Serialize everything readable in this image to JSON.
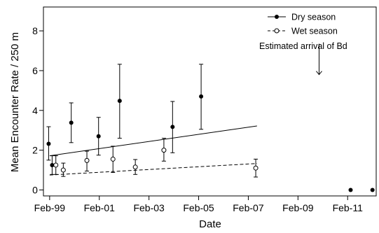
{
  "chart_data": {
    "type": "scatter",
    "title": "",
    "xlabel": "Date",
    "ylabel": "Mean Encounter Rate / 250 m",
    "x_ticks": [
      "Feb-99",
      "Feb-01",
      "Feb-03",
      "Feb-05",
      "Feb-07",
      "Feb-09",
      "Feb-11"
    ],
    "x_tick_years": [
      1999,
      2001,
      2003,
      2005,
      2007,
      2009,
      2011
    ],
    "xlim": [
      1998.75,
      2012.15
    ],
    "ylim": [
      -0.3,
      9.2
    ],
    "y_ticks": [
      0,
      2,
      4,
      6,
      8
    ],
    "grid": false,
    "legend_position": "top-right",
    "series": [
      {
        "name": "Dry season",
        "marker": "filled-circle",
        "line": "solid",
        "color": "#000000",
        "points": [
          {
            "x": 1998.96,
            "y": 2.32,
            "ylo": 1.5,
            "yhi": 3.18
          },
          {
            "x": 1999.1,
            "y": 1.25,
            "ylo": 0.78,
            "yhi": 1.72
          },
          {
            "x": 1999.87,
            "y": 3.38,
            "ylo": 2.38,
            "yhi": 4.38
          },
          {
            "x": 2000.97,
            "y": 2.7,
            "ylo": 1.75,
            "yhi": 3.65
          },
          {
            "x": 2001.82,
            "y": 4.48,
            "ylo": 2.6,
            "yhi": 6.32
          },
          {
            "x": 2003.95,
            "y": 3.17,
            "ylo": 1.87,
            "yhi": 4.45
          },
          {
            "x": 2005.1,
            "y": 4.7,
            "ylo": 3.05,
            "yhi": 6.32
          },
          {
            "x": 2011.12,
            "y": 0.0
          },
          {
            "x": 2012.0,
            "y": 0.0
          }
        ],
        "trend": [
          {
            "x": 1999.0,
            "y": 1.72
          },
          {
            "x": 2007.35,
            "y": 3.22
          }
        ]
      },
      {
        "name": "Wet season",
        "marker": "open-circle",
        "line": "dashed",
        "color": "#000000",
        "points": [
          {
            "x": 1999.25,
            "y": 1.25,
            "ylo": 0.78,
            "yhi": 1.72
          },
          {
            "x": 1999.55,
            "y": 1.0,
            "ylo": 0.68,
            "yhi": 1.35
          },
          {
            "x": 2000.5,
            "y": 1.48,
            "ylo": 0.95,
            "yhi": 1.95
          },
          {
            "x": 2001.55,
            "y": 1.55,
            "ylo": 0.88,
            "yhi": 2.2
          },
          {
            "x": 2002.45,
            "y": 1.15,
            "ylo": 0.78,
            "yhi": 1.53
          },
          {
            "x": 2003.6,
            "y": 2.0,
            "ylo": 1.45,
            "yhi": 2.6
          },
          {
            "x": 2007.3,
            "y": 1.1,
            "ylo": 0.65,
            "yhi": 1.55
          }
        ],
        "trend": [
          {
            "x": 1999.0,
            "y": 0.75
          },
          {
            "x": 2007.35,
            "y": 1.33
          }
        ]
      }
    ],
    "annotations": [
      {
        "text": "Estimated arrival of Bd",
        "arrow_x": 2009.85,
        "arrow_from_y": 7.35,
        "arrow_to_y": 5.8
      }
    ]
  }
}
